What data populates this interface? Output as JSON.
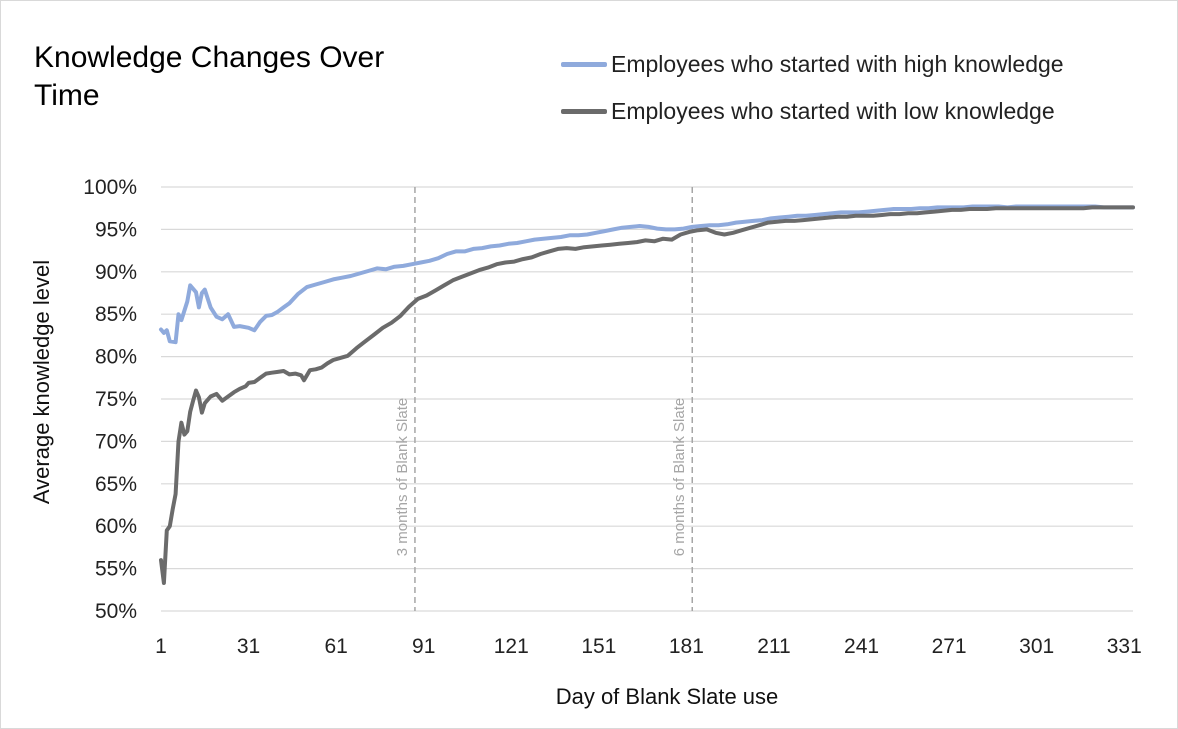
{
  "chart_data": {
    "type": "line",
    "title": "Knowledge Changes Over Time",
    "xlabel": "Day of Blank Slate use",
    "ylabel": "Average knowledge level",
    "xlim": [
      1,
      334
    ],
    "ylim": [
      50,
      100
    ],
    "x_ticks": [
      1,
      31,
      61,
      91,
      121,
      151,
      181,
      211,
      241,
      271,
      301,
      331
    ],
    "y_ticks": [
      50,
      55,
      60,
      65,
      70,
      75,
      80,
      85,
      90,
      95,
      100
    ],
    "y_tick_labels": [
      "50%",
      "55%",
      "60%",
      "65%",
      "70%",
      "75%",
      "80%",
      "85%",
      "90%",
      "95%",
      "100%"
    ],
    "grid": "horizontal",
    "legend": "top-right",
    "annotations": [
      {
        "x": 88,
        "text": "3 months of Blank Slate"
      },
      {
        "x": 183,
        "text": "6 months of Blank Slate"
      }
    ],
    "series": [
      {
        "name": "Employees who started with high knowledge",
        "color": "#8faadc",
        "points": [
          [
            1,
            83.2
          ],
          [
            2,
            82.8
          ],
          [
            3,
            83.1
          ],
          [
            4,
            81.8
          ],
          [
            6,
            81.7
          ],
          [
            7,
            85
          ],
          [
            8,
            84.3
          ],
          [
            10,
            86.5
          ],
          [
            11,
            88.4
          ],
          [
            13,
            87.6
          ],
          [
            14,
            85.8
          ],
          [
            15,
            87.5
          ],
          [
            16,
            87.9
          ],
          [
            18,
            85.8
          ],
          [
            20,
            84.7
          ],
          [
            22,
            84.4
          ],
          [
            24,
            85
          ],
          [
            26,
            83.5
          ],
          [
            28,
            83.6
          ],
          [
            31,
            83.4
          ],
          [
            33,
            83.1
          ],
          [
            35,
            84.1
          ],
          [
            37,
            84.8
          ],
          [
            39,
            84.9
          ],
          [
            41,
            85.3
          ],
          [
            43,
            85.8
          ],
          [
            45,
            86.3
          ],
          [
            48,
            87.4
          ],
          [
            51,
            88.2
          ],
          [
            54,
            88.5
          ],
          [
            57,
            88.8
          ],
          [
            60,
            89.1
          ],
          [
            63,
            89.3
          ],
          [
            66,
            89.5
          ],
          [
            69,
            89.8
          ],
          [
            72,
            90.1
          ],
          [
            75,
            90.4
          ],
          [
            78,
            90.3
          ],
          [
            81,
            90.6
          ],
          [
            84,
            90.7
          ],
          [
            87,
            90.9
          ],
          [
            90,
            91.1
          ],
          [
            93,
            91.3
          ],
          [
            96,
            91.6
          ],
          [
            99,
            92.1
          ],
          [
            102,
            92.4
          ],
          [
            105,
            92.4
          ],
          [
            108,
            92.7
          ],
          [
            111,
            92.8
          ],
          [
            114,
            93
          ],
          [
            117,
            93.1
          ],
          [
            120,
            93.3
          ],
          [
            123,
            93.4
          ],
          [
            126,
            93.6
          ],
          [
            129,
            93.8
          ],
          [
            132,
            93.9
          ],
          [
            135,
            94
          ],
          [
            138,
            94.1
          ],
          [
            141,
            94.3
          ],
          [
            144,
            94.3
          ],
          [
            147,
            94.4
          ],
          [
            150,
            94.6
          ],
          [
            153,
            94.8
          ],
          [
            156,
            95
          ],
          [
            159,
            95.2
          ],
          [
            162,
            95.3
          ],
          [
            165,
            95.4
          ],
          [
            168,
            95.3
          ],
          [
            171,
            95.1
          ],
          [
            174,
            95
          ],
          [
            177,
            95
          ],
          [
            180,
            95.1
          ],
          [
            183,
            95.3
          ],
          [
            186,
            95.4
          ],
          [
            189,
            95.5
          ],
          [
            192,
            95.5
          ],
          [
            195,
            95.6
          ],
          [
            198,
            95.8
          ],
          [
            201,
            95.9
          ],
          [
            204,
            96
          ],
          [
            207,
            96.1
          ],
          [
            210,
            96.3
          ],
          [
            213,
            96.4
          ],
          [
            216,
            96.5
          ],
          [
            219,
            96.6
          ],
          [
            222,
            96.6
          ],
          [
            225,
            96.7
          ],
          [
            228,
            96.8
          ],
          [
            231,
            96.9
          ],
          [
            234,
            97
          ],
          [
            237,
            97
          ],
          [
            240,
            97
          ],
          [
            243,
            97.1
          ],
          [
            246,
            97.2
          ],
          [
            249,
            97.3
          ],
          [
            252,
            97.4
          ],
          [
            255,
            97.4
          ],
          [
            258,
            97.4
          ],
          [
            261,
            97.5
          ],
          [
            264,
            97.5
          ],
          [
            267,
            97.6
          ],
          [
            270,
            97.6
          ],
          [
            273,
            97.6
          ],
          [
            276,
            97.6
          ],
          [
            279,
            97.7
          ],
          [
            282,
            97.7
          ],
          [
            285,
            97.7
          ],
          [
            288,
            97.7
          ],
          [
            291,
            97.6
          ],
          [
            294,
            97.7
          ],
          [
            297,
            97.7
          ],
          [
            300,
            97.7
          ],
          [
            303,
            97.7
          ],
          [
            306,
            97.7
          ],
          [
            309,
            97.7
          ],
          [
            312,
            97.7
          ],
          [
            315,
            97.7
          ],
          [
            318,
            97.7
          ],
          [
            321,
            97.7
          ],
          [
            324,
            97.6
          ],
          [
            327,
            97.6
          ],
          [
            330,
            97.6
          ],
          [
            334,
            97.6
          ]
        ]
      },
      {
        "name": "Employees who started with low knowledge",
        "color": "#6b6b6b",
        "points": [
          [
            1,
            56
          ],
          [
            2,
            53.3
          ],
          [
            3,
            59.5
          ],
          [
            4,
            60
          ],
          [
            5,
            62
          ],
          [
            6,
            63.8
          ],
          [
            7,
            70
          ],
          [
            8,
            72.2
          ],
          [
            9,
            70.8
          ],
          [
            10,
            71.2
          ],
          [
            11,
            73.5
          ],
          [
            12,
            74.8
          ],
          [
            13,
            76
          ],
          [
            14,
            75.2
          ],
          [
            15,
            73.4
          ],
          [
            16,
            74.5
          ],
          [
            18,
            75.3
          ],
          [
            20,
            75.6
          ],
          [
            22,
            74.8
          ],
          [
            24,
            75.3
          ],
          [
            26,
            75.8
          ],
          [
            28,
            76.2
          ],
          [
            30,
            76.5
          ],
          [
            31,
            76.9
          ],
          [
            33,
            77
          ],
          [
            35,
            77.5
          ],
          [
            37,
            78
          ],
          [
            39,
            78.1
          ],
          [
            41,
            78.2
          ],
          [
            43,
            78.3
          ],
          [
            45,
            77.9
          ],
          [
            47,
            78
          ],
          [
            49,
            77.8
          ],
          [
            50,
            77.2
          ],
          [
            52,
            78.4
          ],
          [
            54,
            78.5
          ],
          [
            56,
            78.7
          ],
          [
            58,
            79.2
          ],
          [
            60,
            79.6
          ],
          [
            62,
            79.8
          ],
          [
            65,
            80.1
          ],
          [
            68,
            81
          ],
          [
            71,
            81.8
          ],
          [
            74,
            82.6
          ],
          [
            77,
            83.4
          ],
          [
            80,
            84
          ],
          [
            83,
            84.8
          ],
          [
            86,
            85.9
          ],
          [
            89,
            86.8
          ],
          [
            92,
            87.2
          ],
          [
            95,
            87.8
          ],
          [
            98,
            88.4
          ],
          [
            101,
            89
          ],
          [
            104,
            89.4
          ],
          [
            107,
            89.8
          ],
          [
            110,
            90.2
          ],
          [
            113,
            90.5
          ],
          [
            116,
            90.9
          ],
          [
            119,
            91.1
          ],
          [
            122,
            91.2
          ],
          [
            125,
            91.5
          ],
          [
            128,
            91.7
          ],
          [
            131,
            92.1
          ],
          [
            134,
            92.4
          ],
          [
            137,
            92.7
          ],
          [
            140,
            92.8
          ],
          [
            143,
            92.7
          ],
          [
            146,
            92.9
          ],
          [
            149,
            93
          ],
          [
            152,
            93.1
          ],
          [
            155,
            93.2
          ],
          [
            158,
            93.3
          ],
          [
            161,
            93.4
          ],
          [
            164,
            93.5
          ],
          [
            167,
            93.7
          ],
          [
            170,
            93.6
          ],
          [
            173,
            93.9
          ],
          [
            176,
            93.8
          ],
          [
            179,
            94.4
          ],
          [
            182,
            94.7
          ],
          [
            185,
            94.9
          ],
          [
            188,
            95
          ],
          [
            191,
            94.6
          ],
          [
            194,
            94.4
          ],
          [
            197,
            94.6
          ],
          [
            200,
            94.9
          ],
          [
            203,
            95.2
          ],
          [
            206,
            95.5
          ],
          [
            209,
            95.8
          ],
          [
            212,
            95.9
          ],
          [
            215,
            96
          ],
          [
            218,
            96
          ],
          [
            221,
            96.1
          ],
          [
            224,
            96.2
          ],
          [
            227,
            96.3
          ],
          [
            230,
            96.4
          ],
          [
            233,
            96.5
          ],
          [
            236,
            96.5
          ],
          [
            239,
            96.6
          ],
          [
            242,
            96.6
          ],
          [
            245,
            96.6
          ],
          [
            248,
            96.7
          ],
          [
            251,
            96.8
          ],
          [
            254,
            96.8
          ],
          [
            257,
            96.9
          ],
          [
            260,
            96.9
          ],
          [
            263,
            97
          ],
          [
            266,
            97.1
          ],
          [
            269,
            97.2
          ],
          [
            272,
            97.3
          ],
          [
            275,
            97.3
          ],
          [
            278,
            97.4
          ],
          [
            281,
            97.4
          ],
          [
            284,
            97.4
          ],
          [
            287,
            97.5
          ],
          [
            290,
            97.5
          ],
          [
            293,
            97.5
          ],
          [
            296,
            97.5
          ],
          [
            299,
            97.5
          ],
          [
            302,
            97.5
          ],
          [
            305,
            97.5
          ],
          [
            308,
            97.5
          ],
          [
            311,
            97.5
          ],
          [
            314,
            97.5
          ],
          [
            317,
            97.5
          ],
          [
            320,
            97.6
          ],
          [
            323,
            97.6
          ],
          [
            326,
            97.6
          ],
          [
            329,
            97.6
          ],
          [
            334,
            97.6
          ]
        ]
      }
    ]
  }
}
